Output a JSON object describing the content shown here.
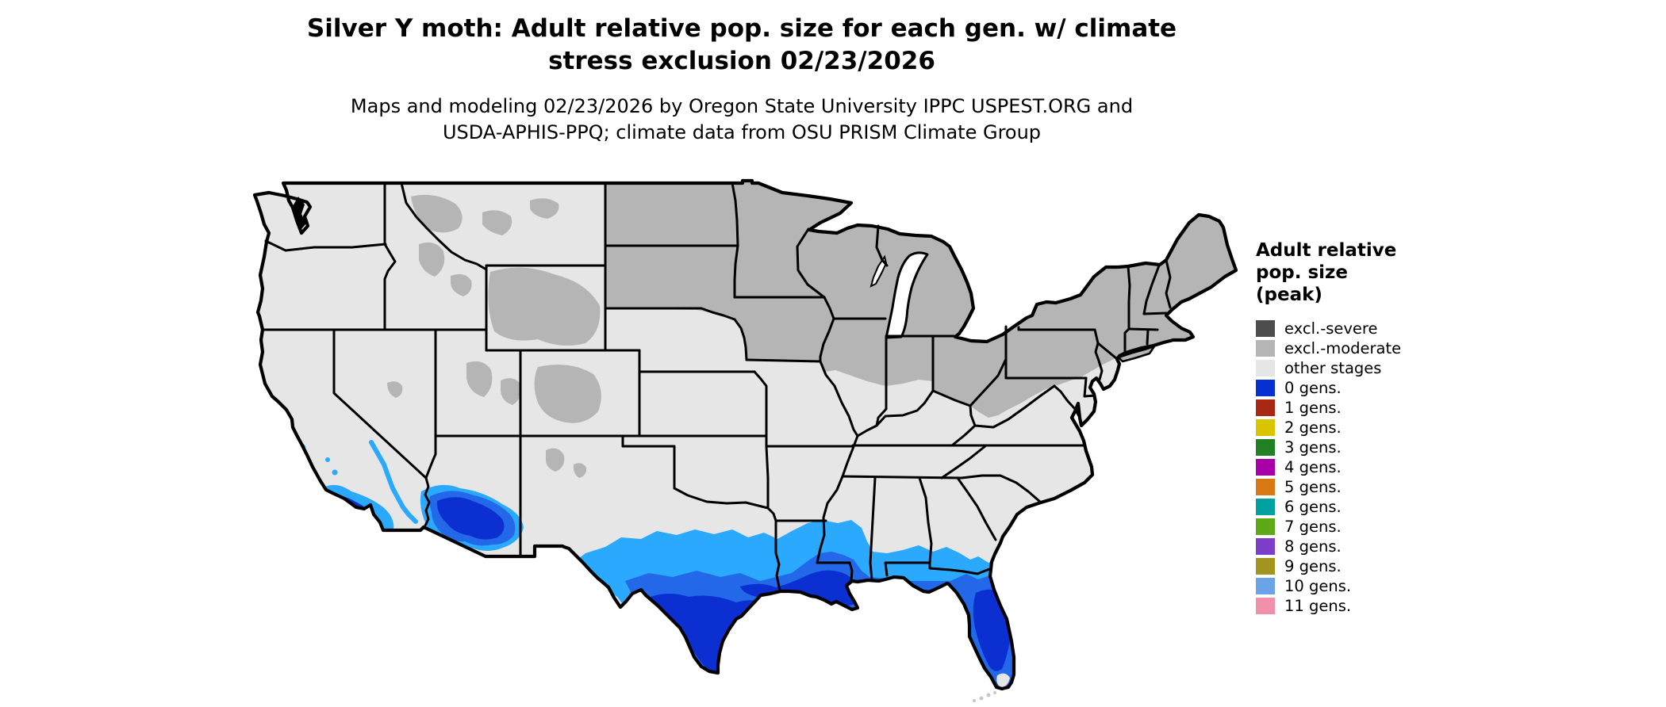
{
  "title": {
    "line1": "Silver Y moth: Adult relative pop. size for each gen. w/ climate",
    "line2": "stress exclusion 02/23/2026"
  },
  "subtitle": {
    "line1": "Maps and modeling 02/23/2026 by Oregon State University IPPC USPEST.ORG and",
    "line2": "USDA-APHIS-PPQ; climate data from OSU PRISM Climate Group"
  },
  "legend": {
    "title_lines": [
      "Adult relative",
      "pop. size",
      "(peak)"
    ],
    "items": [
      {
        "label": "excl.-severe",
        "color": "#4d4d4d"
      },
      {
        "label": "excl.-moderate",
        "color": "#b5b5b5"
      },
      {
        "label": "other stages",
        "color": "#e6e6e6"
      },
      {
        "label": "0 gens.",
        "color": "#0531d1"
      },
      {
        "label": "1 gens.",
        "color": "#a82814"
      },
      {
        "label": "2 gens.",
        "color": "#d9c400"
      },
      {
        "label": "3 gens.",
        "color": "#228022"
      },
      {
        "label": "4 gens.",
        "color": "#aa00aa"
      },
      {
        "label": "5 gens.",
        "color": "#d97915"
      },
      {
        "label": "6 gens.",
        "color": "#00a0a0"
      },
      {
        "label": "7 gens.",
        "color": "#5fa818"
      },
      {
        "label": "8 gens.",
        "color": "#7d3fc9"
      },
      {
        "label": "9 gens.",
        "color": "#a39420"
      },
      {
        "label": "10 gens.",
        "color": "#6ba3e8"
      },
      {
        "label": "11 gens.",
        "color": "#f090ab"
      }
    ]
  },
  "map": {
    "colors": {
      "water": "#ffffff",
      "border": "#000000",
      "other_stages": "#e6e6e6",
      "excluded_moderate": "#b5b5b5",
      "excluded_severe": "#4d4d4d",
      "pop_low": "#2aa9ff",
      "pop_mid": "#2268e8",
      "pop_high": "#0c2fd2"
    },
    "regions_depicted": [
      {
        "area": "Northern tier: upper Midwest, Great Lakes states, Northeast",
        "category": "excl.-moderate"
      },
      {
        "area": "Mountain West highlands (MT, ID, WY, UT, CO patches)",
        "category": "excl.-moderate"
      },
      {
        "area": "Central and southern interior US",
        "category": "other stages"
      },
      {
        "area": "Southern Texas, Gulf Coast, Florida, southern California coast, southern Arizona",
        "category": "0 gens. (blue; darker = larger relative pop. size)"
      }
    ]
  }
}
